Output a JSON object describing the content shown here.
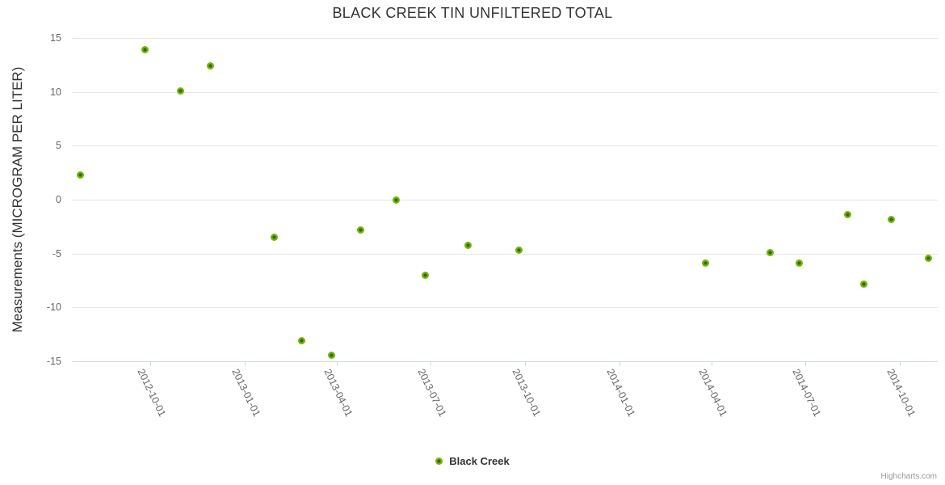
{
  "chart_data": {
    "type": "scatter",
    "title": "BLACK CREEK TIN UNFILTERED TOTAL",
    "xlabel": "",
    "ylabel": "Measurements (MICROGRAM PER LITER)",
    "ylim": [
      -15,
      15
    ],
    "y_ticks": [
      {
        "value": 15,
        "label": "15"
      },
      {
        "value": 10,
        "label": "10"
      },
      {
        "value": 5,
        "label": "5"
      },
      {
        "value": 0,
        "label": "0"
      },
      {
        "value": -5,
        "label": "-5"
      },
      {
        "value": -10,
        "label": "-10"
      },
      {
        "value": -15,
        "label": "-15"
      }
    ],
    "x_ticks": [
      "2012-10-01",
      "2013-01-01",
      "2013-04-01",
      "2013-07-01",
      "2013-10-01",
      "2014-01-01",
      "2014-04-01",
      "2014-07-01",
      "2014-10-01"
    ],
    "x_range": [
      "2012-07-17",
      "2014-11-07"
    ],
    "grid": true,
    "legend_position": "bottom-center",
    "series": [
      {
        "name": "Black Creek",
        "points": [
          {
            "date": "2012-07-25",
            "value": 2.3
          },
          {
            "date": "2012-09-26",
            "value": 13.9
          },
          {
            "date": "2012-10-31",
            "value": 10.1
          },
          {
            "date": "2012-11-29",
            "value": 12.4
          },
          {
            "date": "2013-01-30",
            "value": -3.5
          },
          {
            "date": "2013-02-26",
            "value": -13.1
          },
          {
            "date": "2013-03-27",
            "value": -14.4
          },
          {
            "date": "2013-04-24",
            "value": -2.8
          },
          {
            "date": "2013-05-29",
            "value": 0.0
          },
          {
            "date": "2013-06-26",
            "value": -7.0
          },
          {
            "date": "2013-08-07",
            "value": -4.2
          },
          {
            "date": "2013-09-25",
            "value": -4.7
          },
          {
            "date": "2014-03-26",
            "value": -5.9
          },
          {
            "date": "2014-05-28",
            "value": -4.9
          },
          {
            "date": "2014-06-25",
            "value": -5.9
          },
          {
            "date": "2014-08-11",
            "value": -1.4
          },
          {
            "date": "2014-08-27",
            "value": -7.8
          },
          {
            "date": "2014-09-23",
            "value": -1.8
          },
          {
            "date": "2014-10-29",
            "value": -5.4
          }
        ]
      }
    ]
  },
  "legend": {
    "label": "Black Creek"
  },
  "credits": {
    "label": "Highcharts.com"
  },
  "colors": {
    "marker_outer": "#72b606",
    "marker_inner": "#336703",
    "grid": "#e6e6e6",
    "axis": "#ccd6eb",
    "title_text": "#333333",
    "label_text": "#666666",
    "credits_text": "#999999"
  }
}
